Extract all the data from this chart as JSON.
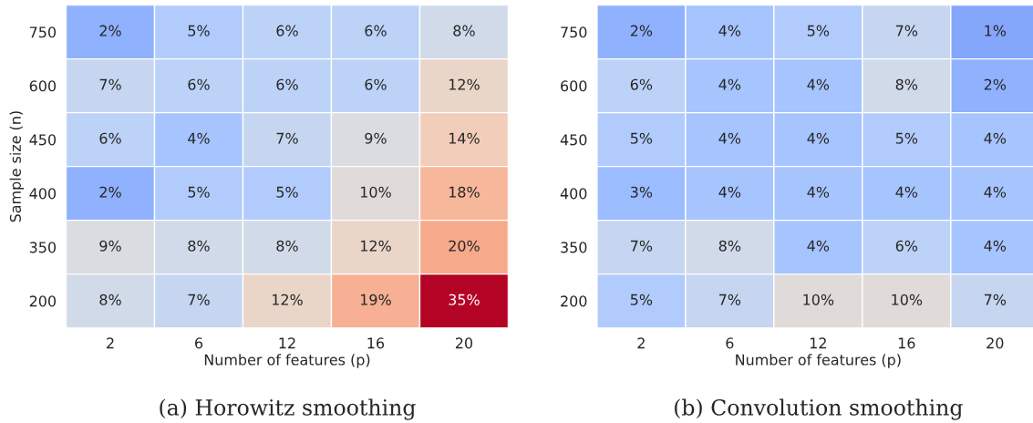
{
  "chart_data": [
    {
      "type": "heatmap",
      "title": "(a) Horowitz smoothing",
      "xlabel": "Number of features (p)",
      "ylabel": "Sample size (n)",
      "categories": [
        "2",
        "6",
        "12",
        "16",
        "20"
      ],
      "y_categories": [
        "750",
        "600",
        "450",
        "400",
        "350",
        "200"
      ],
      "cells": [
        [
          2,
          5,
          6,
          6,
          8
        ],
        [
          7,
          6,
          6,
          6,
          12
        ],
        [
          6,
          4,
          7,
          9,
          14
        ],
        [
          2,
          5,
          5,
          10,
          18
        ],
        [
          9,
          8,
          8,
          12,
          20
        ],
        [
          8,
          7,
          12,
          19,
          35
        ]
      ],
      "cell_labels": [
        [
          "2%",
          "5%",
          "6%",
          "6%",
          "8%"
        ],
        [
          "7%",
          "6%",
          "6%",
          "6%",
          "12%"
        ],
        [
          "6%",
          "4%",
          "7%",
          "9%",
          "14%"
        ],
        [
          "2%",
          "5%",
          "5%",
          "10%",
          "18%"
        ],
        [
          "9%",
          "8%",
          "8%",
          "12%",
          "20%"
        ],
        [
          "8%",
          "7%",
          "12%",
          "19%",
          "35%"
        ]
      ]
    },
    {
      "type": "heatmap",
      "title": "(b) Convolution smoothing",
      "xlabel": "Number of features (p)",
      "categories": [
        "2",
        "6",
        "12",
        "16",
        "20"
      ],
      "y_categories": [
        "750",
        "600",
        "450",
        "400",
        "350",
        "200"
      ],
      "cells": [
        [
          2,
          4,
          5,
          7,
          1
        ],
        [
          6,
          4,
          4,
          8,
          2
        ],
        [
          5,
          4,
          4,
          5,
          4
        ],
        [
          3,
          4,
          4,
          4,
          4
        ],
        [
          7,
          8,
          4,
          6,
          4
        ],
        [
          5,
          7,
          10,
          10,
          7
        ]
      ],
      "cell_labels": [
        [
          "2%",
          "4%",
          "5%",
          "7%",
          "1%"
        ],
        [
          "6%",
          "4%",
          "4%",
          "8%",
          "2%"
        ],
        [
          "5%",
          "4%",
          "4%",
          "5%",
          "4%"
        ],
        [
          "3%",
          "4%",
          "4%",
          "4%",
          "4%"
        ],
        [
          "7%",
          "8%",
          "4%",
          "6%",
          "4%"
        ],
        [
          "5%",
          "7%",
          "10%",
          "10%",
          "7%"
        ]
      ]
    }
  ]
}
